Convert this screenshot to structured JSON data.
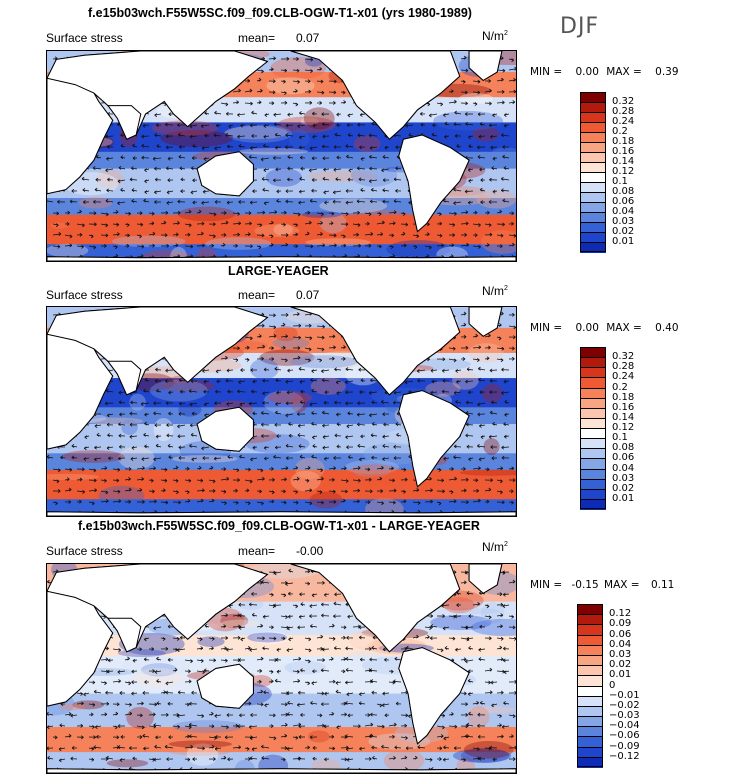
{
  "season": "DJF",
  "panels": [
    {
      "title": "f.e15b03wch.F55W5SC.f09_f09.CLB-OGW-T1-x01 (yrs 1980-1989)",
      "field_label": "Surface stress",
      "mean_label": "mean=",
      "mean_value": "0.07",
      "units_base": "N/m",
      "units_exp": "2",
      "min_label": "MIN =",
      "min_value": "0.00",
      "max_label": "MAX =",
      "max_value": "0.39",
      "legend": {
        "levels": [
          "0.32",
          "0.28",
          "0.24",
          "0.2",
          "0.18",
          "0.16",
          "0.14",
          "0.12",
          "0.1",
          "0.08",
          "0.06",
          "0.04",
          "0.03",
          "0.02",
          "0.01"
        ],
        "colors": [
          "#7f0000",
          "#b21a0e",
          "#d6361e",
          "#ee5a33",
          "#f5825a",
          "#f8a584",
          "#fbc6ad",
          "#fde4d4",
          "#ffffff",
          "#d6e2f7",
          "#afc6f0",
          "#85a6e6",
          "#5b84dc",
          "#3461d6",
          "#1f45cd",
          "#0d2bb5"
        ]
      }
    },
    {
      "title": "LARGE-YEAGER",
      "field_label": "Surface stress",
      "mean_label": "mean=",
      "mean_value": "0.07",
      "units_base": "N/m",
      "units_exp": "2",
      "min_label": "MIN =",
      "min_value": "0.00",
      "max_label": "MAX =",
      "max_value": "0.40",
      "legend": {
        "levels": [
          "0.32",
          "0.28",
          "0.24",
          "0.2",
          "0.18",
          "0.16",
          "0.14",
          "0.12",
          "0.1",
          "0.08",
          "0.06",
          "0.04",
          "0.03",
          "0.02",
          "0.01"
        ],
        "colors": [
          "#7f0000",
          "#b21a0e",
          "#d6361e",
          "#ee5a33",
          "#f5825a",
          "#f8a584",
          "#fbc6ad",
          "#fde4d4",
          "#ffffff",
          "#d6e2f7",
          "#afc6f0",
          "#85a6e6",
          "#5b84dc",
          "#3461d6",
          "#1f45cd",
          "#0d2bb5"
        ]
      }
    },
    {
      "title": "f.e15b03wch.F55W5SC.f09_f09.CLB-OGW-T1-x01 - LARGE-YEAGER",
      "field_label": "Surface stress",
      "mean_label": "mean=",
      "mean_value": "-0.00",
      "units_base": "N/m",
      "units_exp": "2",
      "min_label": "MIN =",
      "min_value": "-0.15",
      "max_label": "MAX =",
      "max_value": "0.11",
      "legend": {
        "levels": [
          "0.12",
          "0.09",
          "0.06",
          "0.04",
          "0.03",
          "0.02",
          "0.01",
          "0",
          "-0.01",
          "-0.02",
          "-0.03",
          "-0.04",
          "-0.06",
          "-0.09",
          "-0.12"
        ],
        "colors": [
          "#7f0000",
          "#b21a0e",
          "#d6361e",
          "#ee5a33",
          "#f5825a",
          "#f8a584",
          "#fbc6ad",
          "#fde4d4",
          "#ffffff",
          "#d6e2f7",
          "#afc6f0",
          "#85a6e6",
          "#5b84dc",
          "#3461d6",
          "#1f45cd",
          "#0d2bb5"
        ]
      }
    }
  ]
}
